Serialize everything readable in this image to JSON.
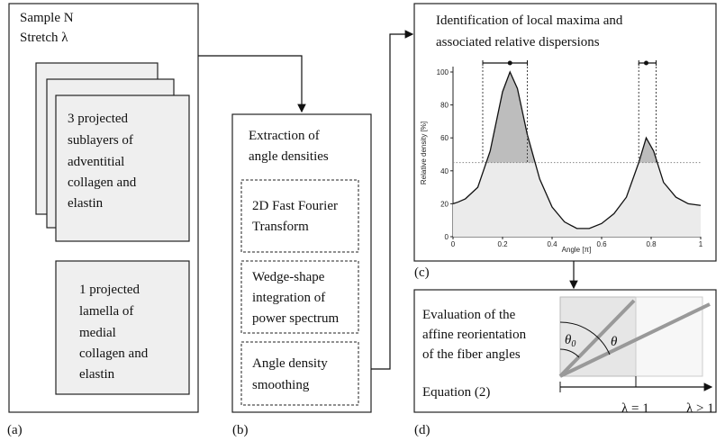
{
  "panel_a": {
    "title": [
      "Sample N",
      "Stretch λ"
    ],
    "box1": [
      "3 projected",
      "sublayers of",
      "adventitial",
      "collagen and",
      "elastin"
    ],
    "box2": [
      "1 projected",
      "lamella of",
      "medial",
      "collagen and",
      "elastin"
    ],
    "label": "(a)"
  },
  "panel_b": {
    "title": [
      "Extraction of",
      "angle densities"
    ],
    "steps": [
      [
        "2D Fast Fourier",
        "Transform"
      ],
      [
        "Wedge-shape",
        "integration of",
        "power spectrum"
      ],
      [
        "Angle density",
        "smoothing"
      ]
    ],
    "label": "(b)"
  },
  "panel_c": {
    "title": [
      "Identification of local maxima and",
      "associated relative dispersions"
    ],
    "label": "(c)",
    "chart": {
      "type": "line",
      "y_label": "Relative density [%]",
      "x_label": "Angle [π]",
      "x": [
        0,
        0.02,
        0.05,
        0.1,
        0.15,
        0.2,
        0.23,
        0.26,
        0.3,
        0.35,
        0.4,
        0.45,
        0.5,
        0.55,
        0.6,
        0.65,
        0.7,
        0.75,
        0.78,
        0.81,
        0.85,
        0.9,
        0.95,
        1
      ],
      "values": [
        20,
        21,
        23,
        30,
        52,
        88,
        100,
        90,
        62,
        35,
        18,
        9,
        5,
        5,
        8,
        14,
        24,
        45,
        60,
        52,
        33,
        24,
        20,
        19
      ],
      "xlim": [
        0,
        1
      ],
      "ylim": [
        0,
        100
      ],
      "xticks": [
        0,
        0.2,
        0.4,
        0.6,
        0.8,
        1
      ],
      "yticks": [
        0,
        20,
        40,
        60,
        80,
        100
      ],
      "threshold": 45,
      "peaks": [
        {
          "x": 0.23,
          "lo": 0.12,
          "hi": 0.3
        },
        {
          "x": 0.78,
          "lo": 0.75,
          "hi": 0.82
        }
      ]
    }
  },
  "panel_d": {
    "text": [
      "Evaluation of the",
      "affine reorientation",
      "of the fiber angles"
    ],
    "equation": "Equation (2)",
    "theta": "θ",
    "theta0": "θ",
    "theta0_sub": "0",
    "lambda1": "λ = 1",
    "lambda2": "λ > 1",
    "label": "(d)"
  }
}
